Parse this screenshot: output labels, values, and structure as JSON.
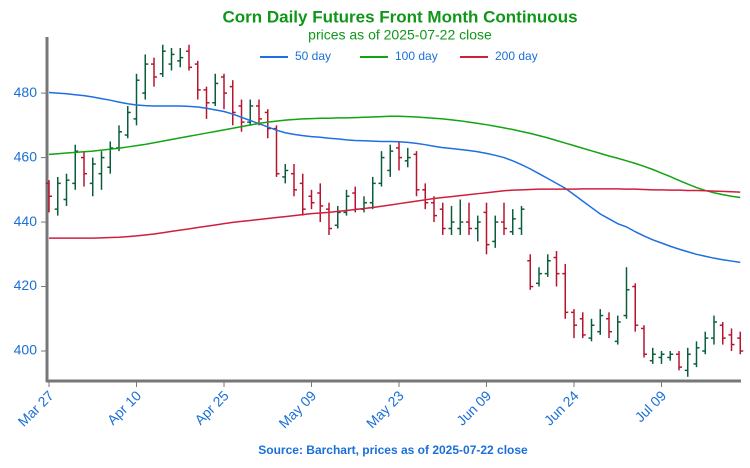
{
  "chart_data": {
    "type": "ohlc",
    "title": "Corn Daily Futures Front Month Continuous",
    "subtitle": "prices as of 2025-07-22 close",
    "source": "Source: Barchart, prices as of 2025-07-22 close",
    "categories": [
      "Mar 27",
      null,
      null,
      null,
      null,
      null,
      null,
      null,
      null,
      null,
      "Apr 10",
      null,
      null,
      null,
      null,
      null,
      null,
      null,
      null,
      null,
      "Apr 25",
      null,
      null,
      null,
      null,
      null,
      null,
      null,
      null,
      null,
      "May 09",
      null,
      null,
      null,
      null,
      null,
      null,
      null,
      null,
      null,
      "May 23",
      null,
      null,
      null,
      null,
      null,
      null,
      null,
      null,
      null,
      "Jun 09",
      null,
      null,
      null,
      null,
      null,
      null,
      null,
      null,
      null,
      "Jun 24",
      null,
      null,
      null,
      null,
      null,
      null,
      null,
      null,
      null,
      "Jul 09",
      null,
      null,
      null,
      null,
      null,
      null,
      null,
      null,
      null
    ],
    "ohlc": {
      "open": [
        452,
        444,
        447,
        452,
        460,
        452,
        455,
        457,
        463,
        467,
        472,
        480,
        489,
        486,
        489,
        490,
        493,
        489,
        481,
        477,
        485,
        482,
        476,
        471,
        476,
        474,
        469,
        454,
        455,
        452,
        448,
        449,
        444,
        439,
        443,
        449,
        444,
        446,
        452,
        456,
        463,
        459,
        461,
        450,
        446,
        444,
        438,
        438,
        440,
        438,
        443,
        434,
        440,
        437,
        438,
        428,
        421,
        424,
        429,
        424,
        412,
        410,
        404,
        406,
        410,
        403,
        411,
        420,
        407,
        397,
        398,
        398,
        399,
        394,
        396,
        400,
        404,
        408,
        405,
        404
      ],
      "high": [
        453,
        454,
        455,
        464,
        462,
        460,
        462,
        465,
        470,
        476,
        486,
        492,
        491,
        495,
        494,
        494,
        495,
        490,
        482,
        486,
        486,
        484,
        478,
        478,
        478,
        475,
        470,
        458,
        458,
        455,
        450,
        452,
        446,
        445,
        450,
        451,
        448,
        454,
        462,
        464,
        465,
        463,
        462,
        452,
        448,
        446,
        445,
        447,
        446,
        442,
        446,
        442,
        446,
        444,
        445,
        430,
        426,
        430,
        431,
        427,
        413,
        412,
        410,
        413,
        412,
        411,
        426,
        421,
        408,
        401,
        400,
        400,
        400,
        401,
        403,
        406,
        411,
        409,
        407,
        406
      ],
      "low": [
        443,
        442,
        445,
        450,
        451,
        448,
        450,
        455,
        462,
        466,
        470,
        478,
        482,
        485,
        487,
        488,
        487,
        478,
        472,
        476,
        475,
        470,
        468,
        470,
        470,
        466,
        454,
        452,
        448,
        442,
        444,
        440,
        436,
        438,
        442,
        443,
        443,
        444,
        451,
        454,
        456,
        457,
        448,
        444,
        440,
        436,
        436,
        436,
        436,
        434,
        430,
        432,
        436,
        436,
        436,
        419,
        420,
        423,
        420,
        410,
        404,
        404,
        403,
        405,
        404,
        402,
        410,
        406,
        398,
        396,
        396,
        397,
        394,
        392,
        395,
        399,
        402,
        402,
        400,
        399
      ],
      "close": [
        448,
        452,
        453,
        462,
        455,
        458,
        460,
        463,
        468,
        474,
        484,
        489,
        485,
        493,
        492,
        491,
        488,
        481,
        477,
        483,
        480,
        474,
        471,
        476,
        472,
        469,
        455,
        456,
        450,
        444,
        446,
        445,
        438,
        443,
        448,
        444,
        446,
        452,
        460,
        462,
        460,
        460,
        450,
        446,
        442,
        438,
        440,
        440,
        438,
        440,
        433,
        440,
        438,
        441,
        444,
        420,
        424,
        428,
        424,
        412,
        408,
        405,
        408,
        411,
        406,
        409,
        419,
        408,
        399,
        399,
        399,
        399,
        395,
        399,
        401,
        404,
        409,
        404,
        402,
        400
      ]
    },
    "up_color": "#0b5e3c",
    "down_color": "#b5162e",
    "series": [
      {
        "name": "50 day",
        "color": "#1f6fe0",
        "values": [
          480.2,
          480,
          479.8,
          479.5,
          479.2,
          478.8,
          478.3,
          477.8,
          477.2,
          476.7,
          476.3,
          476.1,
          476,
          476,
          476,
          476,
          475.9,
          475.7,
          475.3,
          474.8,
          474.3,
          473.5,
          472.5,
          471.5,
          470.5,
          469.5,
          468.5,
          467.7,
          467.2,
          466.8,
          466.5,
          466.3,
          466,
          465.8,
          465.5,
          465.3,
          465.2,
          465.1,
          465,
          465,
          464.9,
          464.7,
          464.4,
          464,
          463.5,
          463.1,
          462.8,
          462.5,
          462.2,
          461.8,
          461.3,
          460.7,
          460,
          459,
          457.8,
          456.5,
          455,
          453.5,
          452,
          450.5,
          448.5,
          446.5,
          444.5,
          442.5,
          441,
          439.5,
          438.5,
          437,
          435.7,
          434.5,
          433.5,
          432.5,
          431.6,
          430.8,
          430,
          429.4,
          428.8,
          428.3,
          427.9,
          427.5
        ]
      },
      {
        "name": "100 day",
        "color": "#13a313",
        "values": [
          461,
          461.2,
          461.4,
          461.6,
          461.8,
          462,
          462.3,
          462.6,
          462.9,
          463.3,
          463.7,
          464.1,
          464.6,
          465.1,
          465.6,
          466.1,
          466.6,
          467.1,
          467.6,
          468.1,
          468.6,
          469.1,
          469.6,
          470.1,
          470.6,
          471,
          471.3,
          471.6,
          471.8,
          472,
          472.1,
          472.2,
          472.2,
          472.3,
          472.3,
          472.4,
          472.5,
          472.6,
          472.7,
          472.8,
          472.8,
          472.7,
          472.6,
          472.4,
          472.2,
          472,
          471.7,
          471.4,
          471,
          470.6,
          470.2,
          469.7,
          469.2,
          468.7,
          468.1,
          467.5,
          466.8,
          466.1,
          465.3,
          464.5,
          463.7,
          462.9,
          462.1,
          461.3,
          460.5,
          459.8,
          459,
          458.2,
          457.3,
          456.3,
          455.2,
          454.1,
          452.9,
          451.8,
          450.7,
          449.8,
          449.1,
          448.5,
          448,
          447.6
        ]
      },
      {
        "name": "200 day",
        "color": "#d01f3c",
        "values": [
          435,
          435,
          435,
          435,
          435,
          435,
          435.1,
          435.2,
          435.3,
          435.5,
          435.7,
          436,
          436.3,
          436.7,
          437.1,
          437.5,
          437.9,
          438.3,
          438.7,
          439.1,
          439.5,
          439.9,
          440.2,
          440.5,
          440.8,
          441.1,
          441.4,
          441.7,
          442,
          442.3,
          442.6,
          442.8,
          443,
          443.3,
          443.6,
          443.9,
          444.2,
          444.5,
          444.9,
          445.3,
          445.7,
          446.1,
          446.5,
          446.9,
          447.3,
          447.6,
          447.9,
          448.2,
          448.5,
          448.8,
          449.1,
          449.4,
          449.7,
          449.9,
          450,
          450.1,
          450.2,
          450.2,
          450.2,
          450.2,
          450.2,
          450.3,
          450.3,
          450.3,
          450.3,
          450.3,
          450.2,
          450.2,
          450.1,
          450,
          450,
          449.9,
          449.9,
          449.8,
          449.8,
          449.7,
          449.6,
          449.5,
          449.4,
          449.3
        ]
      }
    ],
    "ylim": [
      390.7,
      497.4
    ],
    "yticks": [
      400,
      420,
      440,
      460,
      480
    ],
    "legend": "top-center",
    "grid": false
  }
}
